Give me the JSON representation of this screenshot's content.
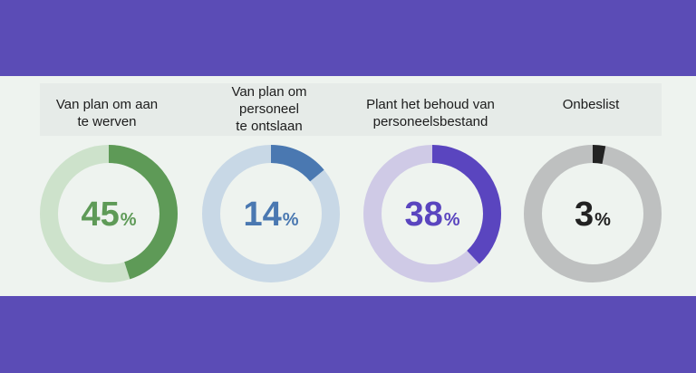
{
  "chart_data": {
    "type": "pie",
    "series": [
      {
        "label": "Van plan om aan\nte werven",
        "value": 45,
        "unit": "%",
        "color": "#5e9a57",
        "track": "#cde2cb"
      },
      {
        "label": "Van plan om\npersoneel\nte ontslaan",
        "value": 14,
        "unit": "%",
        "color": "#4a78b1",
        "track": "#c8d8e6"
      },
      {
        "label": "Plant het behoud van\npersoneelsbestand",
        "value": 38,
        "unit": "%",
        "color": "#5a45bf",
        "track": "#cfcae6"
      },
      {
        "label": "Onbeslist",
        "value": 3,
        "unit": "%",
        "color": "#222222",
        "track": "#bec0c0"
      }
    ]
  }
}
